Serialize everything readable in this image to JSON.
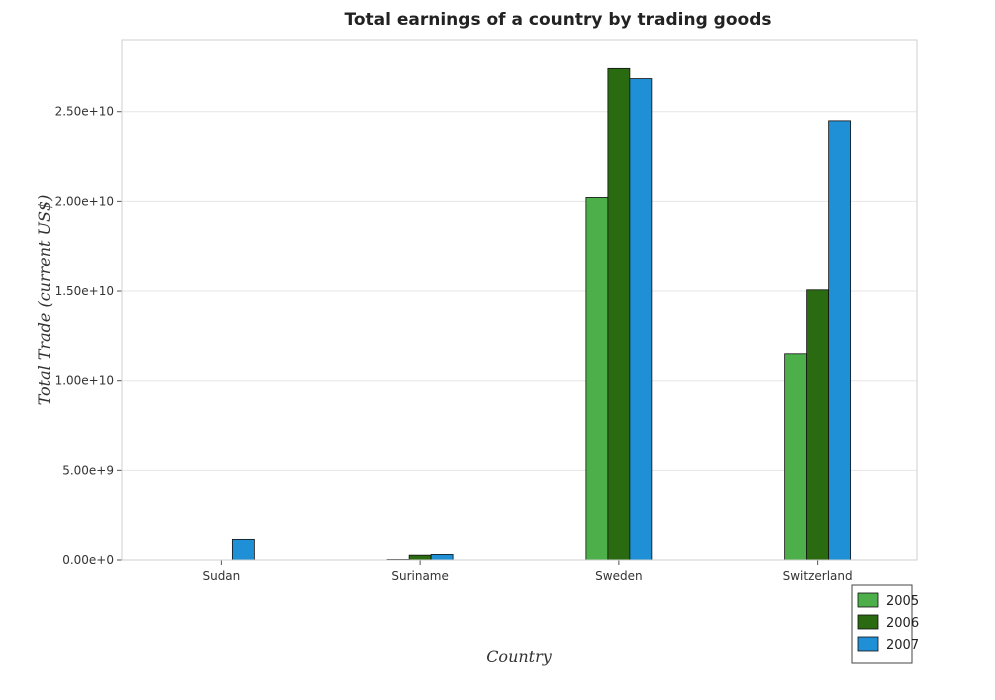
{
  "chart_data": {
    "type": "bar",
    "title": "Total earnings of a country by trading goods",
    "xlabel": "Country",
    "ylabel": "Total Trade (current US$)",
    "categories": [
      "Sudan",
      "Suriname",
      "Sweden",
      "Switzerland"
    ],
    "series": [
      {
        "name": "2005",
        "color": "#4daf4a",
        "values": [
          0,
          30000000,
          20220000000,
          11500000000
        ]
      },
      {
        "name": "2006",
        "color": "#2a6a10",
        "values": [
          0,
          270000000,
          27420000000,
          15070000000
        ]
      },
      {
        "name": "2007",
        "color": "#1f8fd6",
        "values": [
          1150000000,
          310000000,
          26850000000,
          24490000000
        ]
      }
    ],
    "ylim": [
      0,
      29000000000
    ],
    "yticks": [
      0,
      5000000000,
      10000000000,
      15000000000,
      20000000000,
      25000000000
    ],
    "ytick_labels": [
      "0.00e+0",
      "5.00e+9",
      "1.00e+10",
      "1.50e+10",
      "2.00e+10",
      "2.50e+10"
    ],
    "grid": true,
    "legend_position": "bottom-right"
  }
}
